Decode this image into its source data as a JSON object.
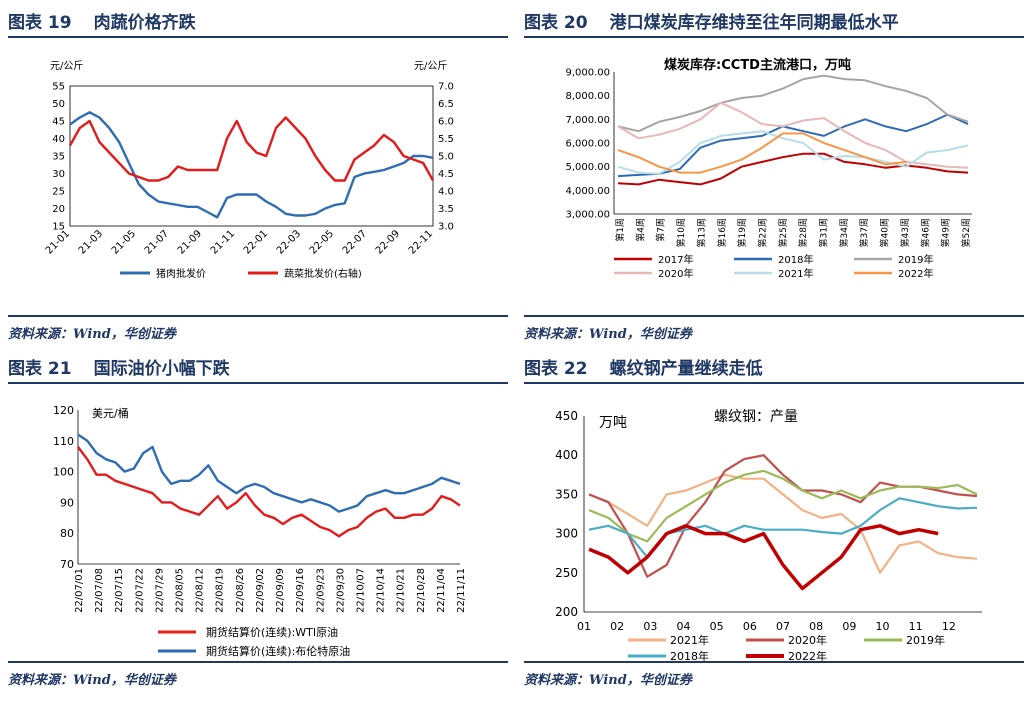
{
  "fig19": {
    "title_num": "图表 19",
    "title_text": "肉蔬价格齐跌",
    "source": "资料来源：Wind，华创证券",
    "left_unit": "元/公斤",
    "right_unit": "元/公斤",
    "chart_data": {
      "type": "line",
      "x_ticks": [
        "21-01",
        "21-03",
        "21-05",
        "21-07",
        "21-09",
        "21-11",
        "22-01",
        "22-03",
        "22-05",
        "22-07",
        "22-09",
        "22-11"
      ],
      "ylim_left": [
        15,
        55
      ],
      "yticks_left": [
        "55",
        "50",
        "45",
        "40",
        "35",
        "30",
        "25",
        "20",
        "15"
      ],
      "ylim_right": [
        3.0,
        7.0
      ],
      "yticks_right": [
        "7.0",
        "6.5",
        "6.0",
        "5.5",
        "5.0",
        "4.5",
        "4.0",
        "3.5",
        "3.0"
      ],
      "series": [
        {
          "name": "猪肉批发价",
          "axis": "left",
          "color": "#2e6cb5",
          "values": [
            44,
            46,
            47.5,
            46,
            43,
            39,
            33,
            27,
            24,
            22,
            21.5,
            21,
            20.5,
            20.5,
            19,
            17.5,
            23,
            24,
            24,
            24,
            22,
            20.5,
            18.5,
            18,
            18,
            18.5,
            20,
            21,
            21.5,
            29,
            30,
            30.5,
            31,
            32,
            33,
            35,
            35,
            34.5
          ]
        },
        {
          "name": "蔬菜批发价(右轴)",
          "axis": "right",
          "color": "#e21b1b",
          "values": [
            5.3,
            5.8,
            6.0,
            5.4,
            5.1,
            4.8,
            4.5,
            4.4,
            4.3,
            4.3,
            4.4,
            4.7,
            4.6,
            4.6,
            4.6,
            4.6,
            5.5,
            6.0,
            5.4,
            5.1,
            5.0,
            5.8,
            6.1,
            5.8,
            5.5,
            5.0,
            4.6,
            4.3,
            4.3,
            4.9,
            5.1,
            5.3,
            5.6,
            5.4,
            5.0,
            4.9,
            4.8,
            4.3
          ]
        }
      ]
    }
  },
  "fig20": {
    "title_num": "图表 20",
    "title_text": "港口煤炭库存维持至往年同期最低水平",
    "source": "资料来源：Wind，华创证券",
    "chart_title": "煤炭库存:CCTD主流港口，万吨",
    "chart_data": {
      "type": "line",
      "ylim": [
        3000,
        9000
      ],
      "yticks": [
        "9,000.00",
        "8,000.00",
        "7,000.00",
        "6,000.00",
        "5,000.00",
        "4,000.00",
        "3,000.00"
      ],
      "x_ticks": [
        "第1周",
        "第4周",
        "第7周",
        "第10周",
        "第13周",
        "第16周",
        "第19周",
        "第22周",
        "第25周",
        "第28周",
        "第31周",
        "第34周",
        "第37周",
        "第40周",
        "第43周",
        "第46周",
        "第49周",
        "第52周"
      ],
      "series": [
        {
          "name": "2017年",
          "color": "#c00000",
          "values": [
            4300,
            4250,
            4450,
            4350,
            4250,
            4500,
            5000,
            5200,
            5400,
            5550,
            5550,
            5200,
            5100,
            4950,
            5050,
            4950,
            4800,
            4750
          ]
        },
        {
          "name": "2018年",
          "color": "#2e6cb5",
          "values": [
            4600,
            4650,
            4700,
            4900,
            5800,
            6100,
            6200,
            6300,
            6700,
            6500,
            6300,
            6700,
            7000,
            6700,
            6500,
            6800,
            7200,
            6800
          ]
        },
        {
          "name": "2019年",
          "color": "#a5a5a5",
          "values": [
            6700,
            6500,
            6900,
            7100,
            7350,
            7700,
            7900,
            8000,
            8300,
            8700,
            8850,
            8700,
            8650,
            8400,
            8200,
            7900,
            7200,
            6900
          ]
        },
        {
          "name": "2020年",
          "color": "#e6b9b8",
          "values": [
            6700,
            6200,
            6350,
            6600,
            7000,
            7700,
            7300,
            6800,
            6700,
            6950,
            7050,
            6500,
            6000,
            5700,
            5200,
            5100,
            5000,
            4950
          ]
        },
        {
          "name": "2021年",
          "color": "#b7dee8",
          "values": [
            5000,
            4750,
            4700,
            5200,
            6000,
            6300,
            6400,
            6500,
            6200,
            6000,
            5300,
            5450,
            5400,
            5200,
            5000,
            5600,
            5700,
            5900
          ]
        },
        {
          "name": "2022年",
          "color": "#f79646",
          "values": [
            5700,
            5400,
            5000,
            4750,
            4750,
            5000,
            5300,
            5800,
            6400,
            6400,
            6000,
            5700,
            5400,
            5100,
            5200,
            null,
            null,
            null
          ]
        }
      ]
    }
  },
  "fig21": {
    "title_num": "图表 21",
    "title_text": "国际油价小幅下跌",
    "source": "资料来源：Wind，华创证券",
    "unit": "美元/桶",
    "chart_data": {
      "type": "line",
      "ylim": [
        70,
        120
      ],
      "yticks": [
        "120",
        "110",
        "100",
        "90",
        "80",
        "70"
      ],
      "x_ticks": [
        "22/07/01",
        "22/07/08",
        "22/07/15",
        "22/07/22",
        "22/07/29",
        "22/08/05",
        "22/08/12",
        "22/08/19",
        "22/08/26",
        "22/09/02",
        "22/09/09",
        "22/09/16",
        "22/09/23",
        "22/09/30",
        "22/10/07",
        "22/10/14",
        "22/10/21",
        "22/10/28",
        "22/11/04",
        "22/11/11"
      ],
      "series": [
        {
          "name": "期货结算价(连续):WTI原油",
          "color": "#e21b1b",
          "values": [
            108,
            104,
            99,
            99,
            97,
            96,
            95,
            94,
            93,
            90,
            90,
            88,
            87,
            86,
            89,
            92,
            88,
            90,
            93,
            89,
            86,
            85,
            83,
            85,
            86,
            84,
            82,
            81,
            79,
            81,
            82,
            85,
            87,
            88,
            85,
            85,
            86,
            86,
            88,
            92,
            91,
            89
          ]
        },
        {
          "name": "期货结算价(连续):布伦特原油",
          "color": "#2e6cb5",
          "values": [
            112,
            110,
            106,
            104,
            103,
            100,
            101,
            106,
            108,
            100,
            96,
            97,
            97,
            99,
            102,
            97,
            95,
            93,
            95,
            96,
            95,
            93,
            92,
            91,
            90,
            91,
            90,
            89,
            87,
            88,
            89,
            92,
            93,
            94,
            93,
            93,
            94,
            95,
            96,
            98,
            97,
            96
          ]
        }
      ]
    }
  },
  "fig22": {
    "title_num": "图表 22",
    "title_text": "螺纹钢产量继续走低",
    "source": "资料来源：Wind，华创证券",
    "unit": "万吨",
    "chart_title": "螺纹钢：产量",
    "chart_data": {
      "type": "line",
      "ylim": [
        200,
        450
      ],
      "yticks": [
        "450",
        "400",
        "350",
        "300",
        "250",
        "200"
      ],
      "x_ticks": [
        "01",
        "02",
        "03",
        "04",
        "05",
        "06",
        "07",
        "08",
        "09",
        "10",
        "11",
        "12"
      ],
      "series": [
        {
          "name": "2021年",
          "color": "#f4b183",
          "values": [
            350,
            340,
            325,
            310,
            350,
            355,
            365,
            375,
            370,
            370,
            350,
            330,
            320,
            325,
            305,
            250,
            285,
            290,
            275,
            270,
            268
          ]
        },
        {
          "name": "2020年",
          "color": "#c0504d",
          "values": [
            350,
            340,
            300,
            245,
            260,
            310,
            340,
            380,
            395,
            400,
            375,
            355,
            355,
            350,
            340,
            365,
            360,
            360,
            355,
            350,
            348
          ]
        },
        {
          "name": "2019年",
          "color": "#9bbb59",
          "values": [
            330,
            320,
            300,
            290,
            320,
            335,
            350,
            365,
            375,
            380,
            370,
            355,
            345,
            355,
            345,
            355,
            360,
            360,
            358,
            362,
            350
          ]
        },
        {
          "name": "2018年",
          "color": "#4bacc6",
          "values": [
            305,
            310,
            300,
            270,
            300,
            305,
            310,
            300,
            310,
            305,
            305,
            305,
            302,
            300,
            310,
            330,
            345,
            340,
            335,
            332,
            333
          ]
        },
        {
          "name": "2022年",
          "color": "#c00000",
          "values": [
            280,
            270,
            250,
            270,
            300,
            310,
            300,
            300,
            290,
            300,
            260,
            230,
            250,
            270,
            305,
            310,
            300,
            305,
            300,
            null,
            null
          ]
        }
      ]
    }
  }
}
